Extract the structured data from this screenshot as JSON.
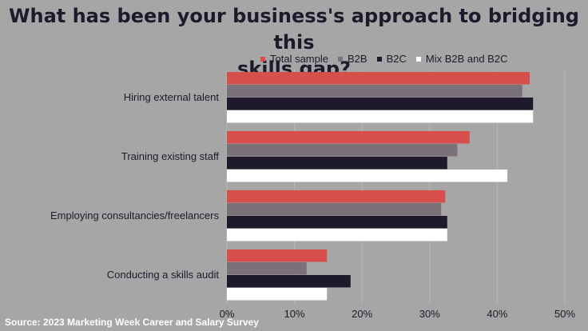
{
  "title_line1": "What has been your business's approach to bridging this",
  "title_line2": "skills gap?",
  "source": "Source: 2023 Marketing Week Career and Salary Survey",
  "colors": {
    "background": "#a6a6a6",
    "Total sample": "#d64f4a",
    "B2B": "#7b7279",
    "B2C": "#1e1a2c",
    "Mix B2B and B2C": "#ffffff",
    "grid": "#b8b8b8",
    "text": "#1c1b2b"
  },
  "chart_data": {
    "type": "bar",
    "orientation": "horizontal",
    "categories": [
      "Hiring external talent",
      "Training existing staff",
      "Employing consultancies/freelancers",
      "Conducting a skills audit"
    ],
    "series": [
      {
        "name": "Total sample",
        "values": [
          44.8,
          35.9,
          32.3,
          14.8
        ]
      },
      {
        "name": "B2B",
        "values": [
          43.7,
          34.1,
          31.7,
          11.8
        ]
      },
      {
        "name": "B2C",
        "values": [
          45.3,
          32.6,
          32.6,
          18.3
        ]
      },
      {
        "name": "Mix B2B and B2C",
        "values": [
          45.3,
          41.5,
          32.6,
          14.8
        ]
      }
    ],
    "x_ticks": [
      "0%",
      "10%",
      "20%",
      "30%",
      "40%",
      "50%"
    ],
    "xlim": [
      0,
      50
    ],
    "grid": true,
    "legend_position": "top"
  }
}
